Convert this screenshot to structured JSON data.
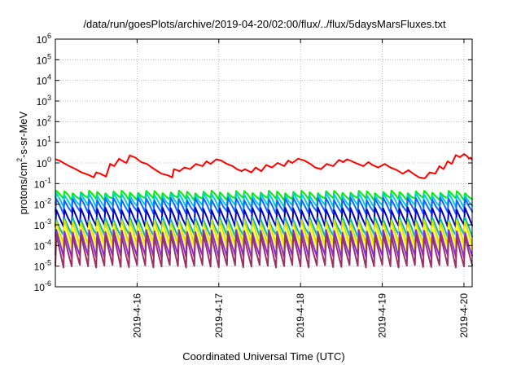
{
  "chart_data": {
    "type": "line",
    "title": "/data/run/goesPlots/archive/2019-04-20/02:00/flux/../flux/5daysMarsFluxes.txt",
    "xlabel": "Coordinated Universal Time (UTC)",
    "ylabel": {
      "prefix": "protons/cm",
      "sup": "2",
      "suffix": "-s-sr-MeV"
    },
    "yscale": "log",
    "ylim_exp": [
      -6,
      6
    ],
    "y_ticks": [
      {
        "base": "10",
        "exp": "-6"
      },
      {
        "base": "10",
        "exp": "-5"
      },
      {
        "base": "10",
        "exp": "-4"
      },
      {
        "base": "10",
        "exp": "-3"
      },
      {
        "base": "10",
        "exp": "-2"
      },
      {
        "base": "10",
        "exp": "-1"
      },
      {
        "base": "10",
        "exp": "0"
      },
      {
        "base": "10",
        "exp": "1"
      },
      {
        "base": "10",
        "exp": "2"
      },
      {
        "base": "10",
        "exp": "3"
      },
      {
        "base": "10",
        "exp": "4"
      },
      {
        "base": "10",
        "exp": "5"
      },
      {
        "base": "10",
        "exp": "6"
      }
    ],
    "x_range_days": [
      15.0,
      20.1
    ],
    "x_ticks": [
      {
        "day": 16,
        "label": "2019-4-16"
      },
      {
        "day": 17,
        "label": "2019-4-17"
      },
      {
        "day": 18,
        "label": "2019-4-18"
      },
      {
        "day": 19,
        "label": "2019-4-19"
      },
      {
        "day": 20,
        "label": "2019-4-20"
      }
    ],
    "grid": true,
    "series": [
      {
        "color": "#ff0000",
        "points": [
          [
            15.0,
            1.5
          ],
          [
            15.05,
            1.3
          ],
          [
            15.1,
            1.0
          ],
          [
            15.17,
            0.7
          ],
          [
            15.25,
            0.5
          ],
          [
            15.32,
            0.35
          ],
          [
            15.4,
            0.27
          ],
          [
            15.47,
            0.2
          ],
          [
            15.5,
            0.35
          ],
          [
            15.55,
            0.3
          ],
          [
            15.62,
            0.22
          ],
          [
            15.67,
            0.9
          ],
          [
            15.72,
            0.7
          ],
          [
            15.78,
            1.6
          ],
          [
            15.83,
            1.2
          ],
          [
            15.87,
            1.0
          ],
          [
            15.91,
            2.3
          ],
          [
            15.98,
            1.8
          ],
          [
            16.05,
            1.1
          ],
          [
            16.12,
            0.9
          ],
          [
            16.18,
            0.6
          ],
          [
            16.25,
            0.4
          ],
          [
            16.3,
            0.3
          ],
          [
            16.38,
            0.25
          ],
          [
            16.43,
            0.2
          ],
          [
            16.45,
            0.5
          ],
          [
            16.52,
            0.4
          ],
          [
            16.58,
            0.6
          ],
          [
            16.65,
            0.5
          ],
          [
            16.72,
            0.9
          ],
          [
            16.8,
            0.7
          ],
          [
            16.85,
            1.2
          ],
          [
            16.9,
            0.9
          ],
          [
            16.97,
            1.5
          ],
          [
            17.03,
            1.3
          ],
          [
            17.1,
            0.9
          ],
          [
            17.17,
            0.7
          ],
          [
            17.22,
            0.5
          ],
          [
            17.28,
            0.4
          ],
          [
            17.32,
            0.5
          ],
          [
            17.4,
            0.35
          ],
          [
            17.45,
            0.6
          ],
          [
            17.52,
            0.4
          ],
          [
            17.58,
            0.8
          ],
          [
            17.65,
            0.6
          ],
          [
            17.72,
            1.0
          ],
          [
            17.8,
            0.7
          ],
          [
            17.85,
            1.3
          ],
          [
            17.9,
            1.0
          ],
          [
            17.97,
            1.6
          ],
          [
            18.05,
            1.3
          ],
          [
            18.12,
            0.9
          ],
          [
            18.18,
            0.6
          ],
          [
            18.25,
            0.5
          ],
          [
            18.32,
            0.9
          ],
          [
            18.4,
            0.7
          ],
          [
            18.47,
            1.4
          ],
          [
            18.52,
            1.1
          ],
          [
            18.57,
            1.5
          ],
          [
            18.63,
            1.2
          ],
          [
            18.7,
            0.9
          ],
          [
            18.77,
            0.7
          ],
          [
            18.83,
            1.1
          ],
          [
            18.88,
            0.8
          ],
          [
            18.95,
            0.6
          ],
          [
            19.03,
            0.9
          ],
          [
            19.1,
            0.6
          ],
          [
            19.18,
            0.45
          ],
          [
            19.25,
            0.3
          ],
          [
            19.32,
            0.45
          ],
          [
            19.38,
            0.3
          ],
          [
            19.45,
            0.2
          ],
          [
            19.52,
            0.18
          ],
          [
            19.58,
            0.35
          ],
          [
            19.65,
            0.3
          ],
          [
            19.7,
            0.7
          ],
          [
            19.75,
            0.5
          ],
          [
            19.8,
            1.2
          ],
          [
            19.85,
            0.9
          ],
          [
            19.9,
            2.4
          ],
          [
            19.95,
            1.9
          ],
          [
            20.0,
            2.7
          ],
          [
            20.04,
            2.1
          ],
          [
            20.06,
            1.6
          ],
          [
            20.08,
            1.8
          ],
          [
            20.1,
            1.4
          ]
        ]
      },
      {
        "color": "#00ee00",
        "hi": 0.04,
        "lo": 0.018
      },
      {
        "color": "#00ccdd",
        "hi": 0.03,
        "lo": 0.008
      },
      {
        "color": "#1166ff",
        "hi": 0.018,
        "lo": 0.004
      },
      {
        "color": "#0000bb",
        "hi": 0.006,
        "lo": 0.0009
      },
      {
        "color": "#00bbaa",
        "hi": 0.002,
        "lo": 0.0003
      },
      {
        "color": "#dddd00",
        "hi": 0.0015,
        "lo": 0.00012
      },
      {
        "color": "#ffff33",
        "hi": 0.0008,
        "lo": 7e-05
      },
      {
        "color": "#8a2be2",
        "hi": 0.0005,
        "lo": 3e-05
      },
      {
        "color": "#993366",
        "hi": 0.0003,
        "lo": 1e-05
      }
    ]
  }
}
